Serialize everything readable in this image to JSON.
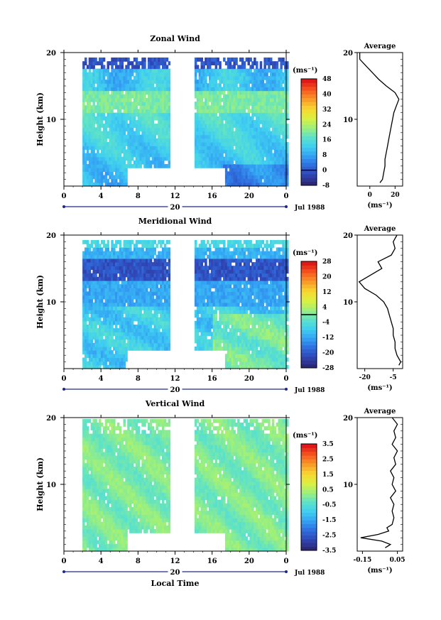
{
  "chart_data": [
    {
      "type": "heatmap",
      "title": "Zonal Wind",
      "ylabel": "Height (km)",
      "ylim": [
        0,
        20
      ],
      "yticks": [
        "10",
        "20"
      ],
      "xlim": [
        0,
        24
      ],
      "xticks": [
        "0",
        "4",
        "8",
        "12",
        "16",
        "20",
        "0"
      ],
      "date_label": "20",
      "month_label": "Jul 1988",
      "unit_label": "(ms⁻¹)",
      "colorbar": {
        "min": -8,
        "max": 48,
        "ticks": [
          "-8",
          "0",
          "8",
          "16",
          "24",
          "32",
          "40",
          "48"
        ],
        "contour_at": 0
      },
      "data_gap_hours": [
        11.3,
        14.0
      ],
      "profile": {
        "title": "Average",
        "xlabel": "(ms⁻¹)",
        "xticks": [
          "0",
          "20"
        ],
        "xlim": [
          -10,
          26
        ],
        "heights": [
          0.5,
          1,
          2,
          3,
          4,
          5,
          6,
          7,
          8,
          9,
          10,
          11,
          12,
          13,
          14,
          15,
          16,
          17,
          18,
          19,
          20
        ],
        "values": [
          8,
          10,
          11,
          12,
          12,
          13,
          14,
          15,
          16,
          17,
          18,
          19,
          21,
          23,
          20,
          13,
          7,
          2,
          -3,
          -8,
          -8
        ]
      }
    },
    {
      "type": "heatmap",
      "title": "Meridional Wind",
      "ylabel": "Height (km)",
      "ylim": [
        0,
        20
      ],
      "yticks": [
        "10",
        "20"
      ],
      "xlim": [
        0,
        24
      ],
      "xticks": [
        "0",
        "4",
        "8",
        "12",
        "16",
        "20",
        "0"
      ],
      "date_label": "20",
      "month_label": "Jul 1988",
      "unit_label": "(ms⁻¹)",
      "colorbar": {
        "min": -28,
        "max": 28,
        "ticks": [
          "-28",
          "-20",
          "-12",
          "-4",
          "4",
          "12",
          "20",
          "28"
        ],
        "contour_at": 0
      },
      "data_gap_hours": [
        11.3,
        14.0
      ],
      "profile": {
        "title": "Average",
        "xlabel": "(ms⁻¹)",
        "xticks": [
          "-20",
          "-5"
        ],
        "xlim": [
          -24,
          0
        ],
        "heights": [
          0.5,
          1,
          2,
          3,
          4,
          5,
          6,
          7,
          8,
          9,
          10,
          11,
          12,
          13,
          14,
          15,
          16,
          17,
          18,
          19,
          20
        ],
        "values": [
          -2,
          -1,
          -3,
          -4,
          -4,
          -5,
          -5,
          -6,
          -7,
          -8,
          -10,
          -14,
          -20,
          -23,
          -17,
          -11,
          -13,
          -6,
          -4,
          -5,
          -3
        ]
      }
    },
    {
      "type": "heatmap",
      "title": "Vertical Wind",
      "ylabel": "Height (km)",
      "ylim": [
        0,
        20
      ],
      "yticks": [
        "10",
        "20"
      ],
      "xlim": [
        0,
        24
      ],
      "xticks": [
        "0",
        "4",
        "8",
        "12",
        "16",
        "20",
        "0"
      ],
      "xlabel": "Local Time",
      "date_label": "20",
      "month_label": "Jul 1988",
      "unit_label": "(ms⁻¹)",
      "colorbar": {
        "min": -3.5,
        "max": 3.5,
        "ticks": [
          "-3.5",
          "-2.5",
          "-1.5",
          "-0.5",
          "0.5",
          "1.5",
          "2.5",
          "3.5"
        ]
      },
      "data_gap_hours": [
        11.3,
        14.0
      ],
      "profile": {
        "title": "Average",
        "xlabel": "(ms⁻¹)",
        "xticks": [
          "-0.15",
          "0.05"
        ],
        "xlim": [
          -0.18,
          0.08
        ],
        "heights": [
          0.5,
          1,
          1.5,
          2,
          2.5,
          3,
          3.5,
          4,
          5,
          6,
          7,
          8,
          9,
          10,
          11,
          12,
          13,
          14,
          15,
          16,
          17,
          18,
          19,
          20
        ],
        "values": [
          -0.02,
          0.01,
          -0.04,
          -0.16,
          -0.06,
          0.0,
          -0.01,
          0.02,
          0.03,
          0.02,
          0.03,
          0.01,
          0.04,
          0.02,
          0.03,
          0.01,
          0.04,
          0.03,
          0.05,
          0.02,
          0.04,
          0.03,
          0.05,
          0.02
        ]
      }
    }
  ]
}
